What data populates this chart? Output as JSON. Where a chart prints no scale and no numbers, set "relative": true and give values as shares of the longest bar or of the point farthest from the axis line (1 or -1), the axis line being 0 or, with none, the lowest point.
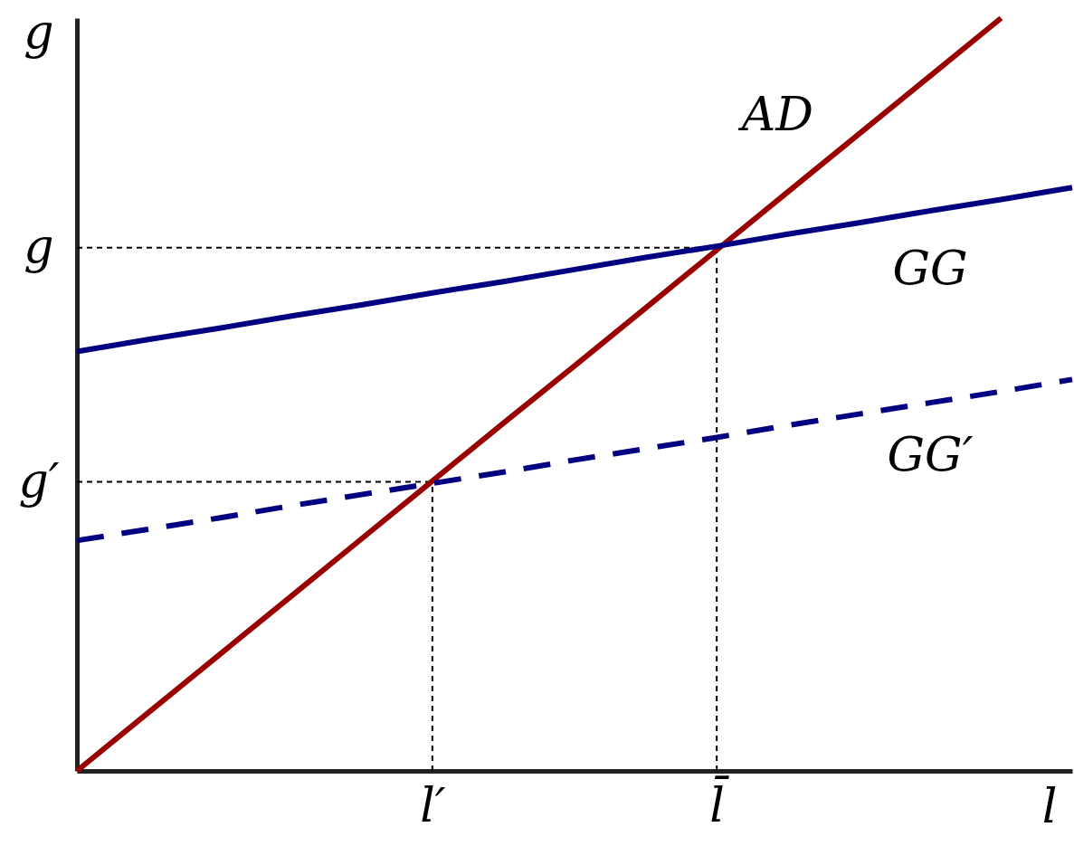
{
  "chart_data": {
    "type": "line",
    "relative": true,
    "xlabel": "l",
    "ylabel": "g",
    "categories": [
      null,
      null,
      null,
      null,
      null,
      "l′",
      null,
      null,
      null,
      "l̄",
      null,
      null,
      null,
      null,
      null
    ],
    "grid": false,
    "series": [
      {
        "name": "AD",
        "color": "#990000",
        "line_style": "solid",
        "values": [
          0,
          0.077,
          0.154,
          0.231,
          0.308,
          0.385,
          0.462,
          0.538,
          0.615,
          0.692,
          0.769,
          0.846,
          0.923,
          1,
          null
        ]
      },
      {
        "name": "GG",
        "color": "#000080",
        "line_style": "solid",
        "values": [
          0.557,
          0.573,
          0.588,
          0.604,
          0.619,
          0.635,
          0.65,
          0.666,
          0.682,
          0.697,
          0.713,
          0.728,
          0.744,
          0.759,
          0.775
        ]
      },
      {
        "name": "GG′",
        "color": "#000080",
        "line_style": "dashed",
        "values": [
          0.306,
          0.321,
          0.336,
          0.352,
          0.367,
          0.382,
          0.397,
          0.413,
          0.428,
          0.443,
          0.459,
          0.474,
          0.489,
          0.504,
          0.52
        ]
      }
    ],
    "ref_lines": [
      {
        "axis": "y",
        "value": 0.695,
        "label": "g",
        "color": "#000000",
        "line_style": "dashed"
      },
      {
        "axis": "y",
        "value": 0.384,
        "label": "g′",
        "color": "#000000",
        "line_style": "dashed"
      },
      {
        "axis": "x",
        "value": "l̄",
        "color": "#000000",
        "line_style": "dashed"
      },
      {
        "axis": "x",
        "value": "l′",
        "color": "#000000",
        "line_style": "dashed"
      }
    ]
  }
}
